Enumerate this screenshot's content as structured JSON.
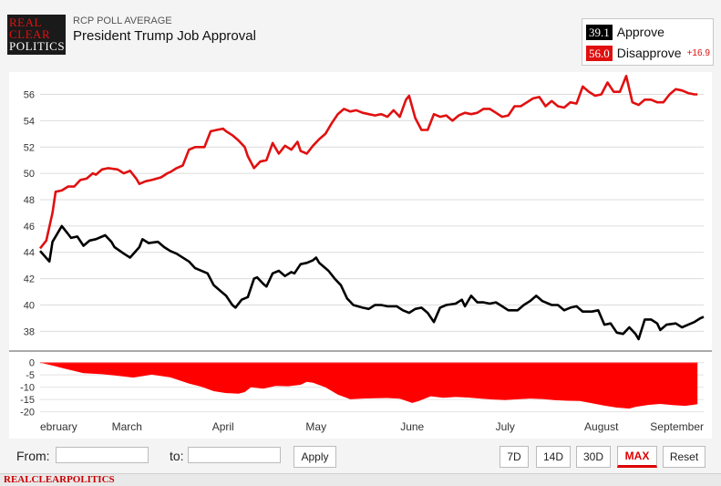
{
  "header": {
    "logo_lines": [
      "REAL",
      "CLEAR",
      "POLITICS"
    ],
    "subtitle": "RCP POLL AVERAGE",
    "title": "President Trump Job Approval"
  },
  "legend": {
    "approve": {
      "value": "39.1",
      "label": "Approve",
      "color": "#000000"
    },
    "disapprove": {
      "value": "56.0",
      "label": "Disapprove",
      "color": "#e01010"
    },
    "spread": "+16.9"
  },
  "controls": {
    "from_label": "From:",
    "to_label": "to:",
    "from_value": "",
    "to_value": "",
    "apply_label": "Apply",
    "ranges": [
      "7D",
      "14D",
      "30D",
      "MAX"
    ],
    "active_range": "MAX",
    "reset_label": "Reset"
  },
  "footer": {
    "brand": "REALCLEARPOLITICS"
  },
  "chart_data": [
    {
      "type": "line",
      "title": "",
      "x_labels": [
        "ebruary",
        "March",
        "April",
        "May",
        "June",
        "July",
        "August",
        "September"
      ],
      "x_label_positions_day": [
        0,
        28,
        59,
        89,
        120,
        150,
        181,
        212
      ],
      "ylim": [
        36.5,
        57.7
      ],
      "yticks": [
        38,
        40,
        42,
        44,
        46,
        48,
        50,
        52,
        54,
        56
      ],
      "grid": true,
      "series": [
        {
          "name": "Approve",
          "color": "#000000",
          "points": [
            [
              0,
              44.1
            ],
            [
              3,
              43.3
            ],
            [
              4,
              44.8
            ],
            [
              6,
              45.6
            ],
            [
              7,
              46.0
            ],
            [
              9,
              45.4
            ],
            [
              10,
              45.1
            ],
            [
              12,
              45.2
            ],
            [
              14,
              44.5
            ],
            [
              16,
              44.9
            ],
            [
              18,
              45.0
            ],
            [
              21,
              45.3
            ],
            [
              23,
              44.8
            ],
            [
              24,
              44.4
            ],
            [
              27,
              43.9
            ],
            [
              29,
              43.6
            ],
            [
              32,
              44.4
            ],
            [
              33,
              45.0
            ],
            [
              35,
              44.7
            ],
            [
              38,
              44.8
            ],
            [
              40,
              44.4
            ],
            [
              42,
              44.1
            ],
            [
              44,
              43.9
            ],
            [
              48,
              43.3
            ],
            [
              50,
              42.8
            ],
            [
              54,
              42.4
            ],
            [
              56,
              41.5
            ],
            [
              58,
              41.1
            ],
            [
              60,
              40.7
            ],
            [
              62,
              40.0
            ],
            [
              63,
              39.8
            ],
            [
              65,
              40.4
            ],
            [
              67,
              40.6
            ],
            [
              69,
              42.0
            ],
            [
              70,
              42.1
            ],
            [
              72,
              41.6
            ],
            [
              73,
              41.4
            ],
            [
              75,
              42.4
            ],
            [
              77,
              42.6
            ],
            [
              79,
              42.2
            ],
            [
              81,
              42.5
            ],
            [
              82,
              42.4
            ],
            [
              84,
              43.1
            ],
            [
              86,
              43.2
            ],
            [
              88,
              43.4
            ],
            [
              89,
              43.6
            ],
            [
              90,
              43.2
            ],
            [
              93,
              42.6
            ],
            [
              95,
              42.0
            ],
            [
              97,
              41.5
            ],
            [
              99,
              40.5
            ],
            [
              101,
              40.0
            ],
            [
              104,
              39.8
            ],
            [
              106,
              39.7
            ],
            [
              108,
              40.0
            ],
            [
              110,
              40.0
            ],
            [
              112,
              39.9
            ],
            [
              115,
              39.9
            ],
            [
              117,
              39.6
            ],
            [
              119,
              39.4
            ],
            [
              121,
              39.7
            ],
            [
              123,
              39.8
            ],
            [
              125,
              39.4
            ],
            [
              127,
              38.7
            ],
            [
              129,
              39.8
            ],
            [
              131,
              40.0
            ],
            [
              134,
              40.1
            ],
            [
              136,
              40.4
            ],
            [
              137,
              39.9
            ],
            [
              139,
              40.7
            ],
            [
              141,
              40.2
            ],
            [
              143,
              40.2
            ],
            [
              145,
              40.1
            ],
            [
              147,
              40.2
            ],
            [
              149,
              39.9
            ],
            [
              151,
              39.6
            ],
            [
              154,
              39.6
            ],
            [
              156,
              40.0
            ],
            [
              158,
              40.3
            ],
            [
              160,
              40.7
            ],
            [
              162,
              40.3
            ],
            [
              165,
              40.0
            ],
            [
              167,
              40.0
            ],
            [
              169,
              39.6
            ],
            [
              171,
              39.8
            ],
            [
              173,
              39.9
            ],
            [
              175,
              39.5
            ],
            [
              178,
              39.5
            ],
            [
              180,
              39.6
            ],
            [
              182,
              38.5
            ],
            [
              184,
              38.6
            ],
            [
              186,
              37.9
            ],
            [
              188,
              37.8
            ],
            [
              190,
              38.3
            ],
            [
              192,
              37.8
            ],
            [
              193,
              37.4
            ],
            [
              195,
              38.9
            ],
            [
              197,
              38.9
            ],
            [
              199,
              38.6
            ],
            [
              200,
              38.1
            ],
            [
              202,
              38.5
            ],
            [
              205,
              38.6
            ],
            [
              207,
              38.3
            ],
            [
              209,
              38.5
            ],
            [
              211,
              38.7
            ],
            [
              213,
              39.0
            ],
            [
              214,
              39.1
            ]
          ]
        },
        {
          "name": "Disapprove",
          "color": "#e01010",
          "points": [
            [
              0,
              44.3
            ],
            [
              2,
              44.9
            ],
            [
              4,
              47.0
            ],
            [
              5,
              48.6
            ],
            [
              7,
              48.7
            ],
            [
              9,
              49.0
            ],
            [
              11,
              49.0
            ],
            [
              13,
              49.5
            ],
            [
              15,
              49.6
            ],
            [
              17,
              50.0
            ],
            [
              18,
              49.9
            ],
            [
              20,
              50.3
            ],
            [
              22,
              50.4
            ],
            [
              25,
              50.3
            ],
            [
              27,
              50.0
            ],
            [
              29,
              50.2
            ],
            [
              31,
              49.6
            ],
            [
              32,
              49.2
            ],
            [
              34,
              49.4
            ],
            [
              36,
              49.5
            ],
            [
              39,
              49.7
            ],
            [
              41,
              50.0
            ],
            [
              42,
              50.1
            ],
            [
              44,
              50.4
            ],
            [
              46,
              50.6
            ],
            [
              48,
              51.8
            ],
            [
              50,
              52.0
            ],
            [
              53,
              52.0
            ],
            [
              55,
              53.2
            ],
            [
              57,
              53.3
            ],
            [
              59,
              53.4
            ],
            [
              60,
              53.2
            ],
            [
              62,
              52.9
            ],
            [
              64,
              52.5
            ],
            [
              66,
              52.0
            ],
            [
              67,
              51.3
            ],
            [
              69,
              50.4
            ],
            [
              71,
              50.9
            ],
            [
              73,
              51.0
            ],
            [
              75,
              52.3
            ],
            [
              77,
              51.5
            ],
            [
              79,
              52.1
            ],
            [
              81,
              51.8
            ],
            [
              83,
              52.4
            ],
            [
              84,
              51.7
            ],
            [
              86,
              51.5
            ],
            [
              88,
              52.1
            ],
            [
              90,
              52.6
            ],
            [
              92,
              53.0
            ],
            [
              94,
              53.8
            ],
            [
              96,
              54.5
            ],
            [
              98,
              54.9
            ],
            [
              100,
              54.7
            ],
            [
              102,
              54.8
            ],
            [
              104,
              54.6
            ],
            [
              106,
              54.5
            ],
            [
              108,
              54.4
            ],
            [
              110,
              54.5
            ],
            [
              112,
              54.3
            ],
            [
              114,
              54.8
            ],
            [
              116,
              54.3
            ],
            [
              118,
              55.6
            ],
            [
              119,
              55.9
            ],
            [
              121,
              54.2
            ],
            [
              123,
              53.3
            ],
            [
              125,
              53.3
            ],
            [
              127,
              54.5
            ],
            [
              129,
              54.3
            ],
            [
              131,
              54.4
            ],
            [
              133,
              54.0
            ],
            [
              135,
              54.4
            ],
            [
              137,
              54.6
            ],
            [
              139,
              54.5
            ],
            [
              141,
              54.6
            ],
            [
              143,
              54.9
            ],
            [
              145,
              54.9
            ],
            [
              147,
              54.6
            ],
            [
              149,
              54.3
            ],
            [
              151,
              54.4
            ],
            [
              153,
              55.1
            ],
            [
              155,
              55.1
            ],
            [
              157,
              55.4
            ],
            [
              159,
              55.7
            ],
            [
              161,
              55.8
            ],
            [
              163,
              55.1
            ],
            [
              165,
              55.5
            ],
            [
              167,
              55.1
            ],
            [
              169,
              55.0
            ],
            [
              171,
              55.4
            ],
            [
              173,
              55.3
            ],
            [
              175,
              56.6
            ],
            [
              177,
              56.2
            ],
            [
              179,
              55.9
            ],
            [
              181,
              56.0
            ],
            [
              183,
              56.9
            ],
            [
              185,
              56.2
            ],
            [
              187,
              56.2
            ],
            [
              189,
              57.4
            ],
            [
              191,
              55.4
            ],
            [
              193,
              55.2
            ],
            [
              195,
              55.6
            ],
            [
              197,
              55.6
            ],
            [
              199,
              55.4
            ],
            [
              201,
              55.4
            ],
            [
              203,
              56.0
            ],
            [
              205,
              56.4
            ],
            [
              207,
              56.3
            ],
            [
              209,
              56.1
            ],
            [
              211,
              56.0
            ],
            [
              212,
              56.0
            ]
          ]
        }
      ]
    },
    {
      "type": "area",
      "title": "",
      "ylim": [
        -22,
        1
      ],
      "yticks": [
        0,
        -5,
        -10,
        -15,
        -20
      ],
      "series": [
        {
          "name": "Spread",
          "color": "#ff0000",
          "points": [
            [
              0,
              0.0
            ],
            [
              4,
              -1.2
            ],
            [
              8,
              -2.5
            ],
            [
              14,
              -4.3
            ],
            [
              20,
              -4.7
            ],
            [
              26,
              -5.5
            ],
            [
              30,
              -6.1
            ],
            [
              36,
              -4.9
            ],
            [
              42,
              -6.0
            ],
            [
              48,
              -8.5
            ],
            [
              52,
              -9.8
            ],
            [
              56,
              -11.6
            ],
            [
              60,
              -12.4
            ],
            [
              64,
              -12.6
            ],
            [
              66,
              -12.0
            ],
            [
              68,
              -10.0
            ],
            [
              72,
              -10.6
            ],
            [
              76,
              -9.5
            ],
            [
              80,
              -9.6
            ],
            [
              84,
              -9.0
            ],
            [
              86,
              -7.8
            ],
            [
              88,
              -8.2
            ],
            [
              92,
              -10.0
            ],
            [
              96,
              -13.0
            ],
            [
              100,
              -14.9
            ],
            [
              104,
              -14.6
            ],
            [
              108,
              -14.5
            ],
            [
              112,
              -14.4
            ],
            [
              116,
              -14.7
            ],
            [
              120,
              -16.4
            ],
            [
              122,
              -15.7
            ],
            [
              126,
              -13.7
            ],
            [
              130,
              -14.3
            ],
            [
              134,
              -14.0
            ],
            [
              138,
              -14.2
            ],
            [
              142,
              -14.6
            ],
            [
              146,
              -15.0
            ],
            [
              150,
              -15.2
            ],
            [
              154,
              -14.9
            ],
            [
              158,
              -14.6
            ],
            [
              162,
              -14.8
            ],
            [
              166,
              -15.3
            ],
            [
              170,
              -15.5
            ],
            [
              174,
              -15.6
            ],
            [
              178,
              -16.5
            ],
            [
              182,
              -17.5
            ],
            [
              186,
              -18.3
            ],
            [
              190,
              -18.7
            ],
            [
              192,
              -18.0
            ],
            [
              196,
              -17.2
            ],
            [
              200,
              -16.8
            ],
            [
              204,
              -17.3
            ],
            [
              208,
              -17.6
            ],
            [
              212,
              -16.9
            ]
          ]
        }
      ]
    }
  ]
}
